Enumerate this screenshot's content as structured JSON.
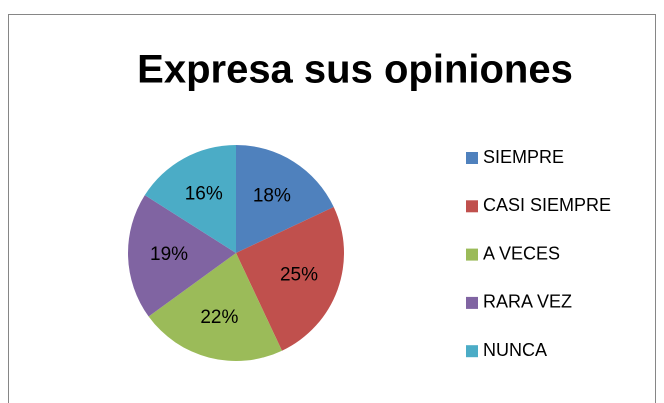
{
  "chart_data": {
    "type": "pie",
    "title": "Expresa sus opiniones",
    "categories": [
      "SIEMPRE",
      "CASI SIEMPRE",
      "A VECES",
      "RARA VEZ",
      "NUNCA"
    ],
    "values": [
      18,
      25,
      22,
      19,
      16
    ],
    "value_labels": [
      "18%",
      "25%",
      "22%",
      "19%",
      "16%"
    ],
    "colors": [
      "#4f81bd",
      "#c0504d",
      "#9bbb59",
      "#8064a2",
      "#4bacc6"
    ],
    "legend": "right"
  }
}
